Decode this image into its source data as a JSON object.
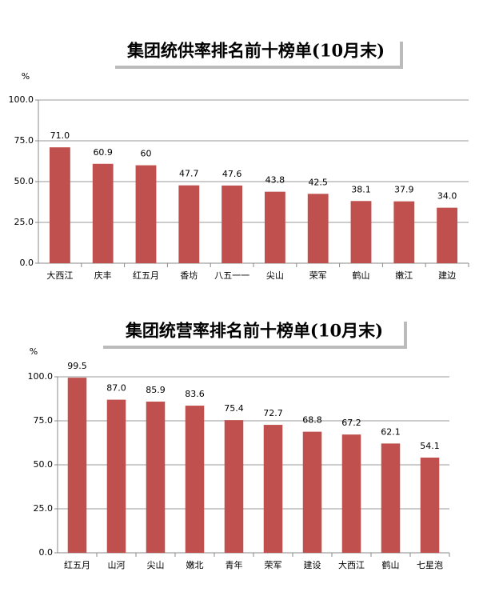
{
  "chart_data": [
    {
      "type": "bar",
      "title": "集团统供率排名前十榜单(10月末)",
      "y_label": "%",
      "color": "#c0504d",
      "grid": true,
      "categories": [
        "大西江",
        "庆丰",
        "红五月",
        "香坊",
        "八五一一",
        "尖山",
        "荣军",
        "鹤山",
        "嫩江",
        "建边"
      ],
      "values": [
        71.0,
        60.9,
        60,
        47.7,
        47.6,
        43.8,
        42.5,
        38.1,
        37.9,
        34.0
      ],
      "value_labels": [
        "71.0",
        "60.9",
        "60",
        "47.7",
        "47.6",
        "43.8",
        "42.5",
        "38.1",
        "37.9",
        "34.0"
      ],
      "ylim": [
        0,
        100
      ],
      "yticks": [
        {
          "value": 0,
          "label": "0.0"
        },
        {
          "value": 25,
          "label": "25.0"
        },
        {
          "value": 50,
          "label": "50.0"
        },
        {
          "value": 75,
          "label": "75.0"
        },
        {
          "value": 100,
          "label": "100.0"
        }
      ]
    },
    {
      "type": "bar",
      "title": "集团统营率排名前十榜单(10月末)",
      "y_label": "%",
      "color": "#c0504d",
      "grid": true,
      "categories": [
        "红五月",
        "山河",
        "尖山",
        "嫩北",
        "青年",
        "荣军",
        "建设",
        "大西江",
        "鹤山",
        "七星泡"
      ],
      "values": [
        99.5,
        87.0,
        85.9,
        83.6,
        75.4,
        72.7,
        68.8,
        67.2,
        62.1,
        54.1
      ],
      "value_labels": [
        "99.5",
        "87.0",
        "85.9",
        "83.6",
        "75.4",
        "72.7",
        "68.8",
        "67.2",
        "62.1",
        "54.1"
      ],
      "ylim": [
        0,
        100
      ],
      "yticks": [
        {
          "value": 0,
          "label": "0.0"
        },
        {
          "value": 25,
          "label": "25.0"
        },
        {
          "value": 50,
          "label": "50.0"
        },
        {
          "value": 75,
          "label": "75.0"
        },
        {
          "value": 100,
          "label": "100.0"
        }
      ]
    }
  ]
}
